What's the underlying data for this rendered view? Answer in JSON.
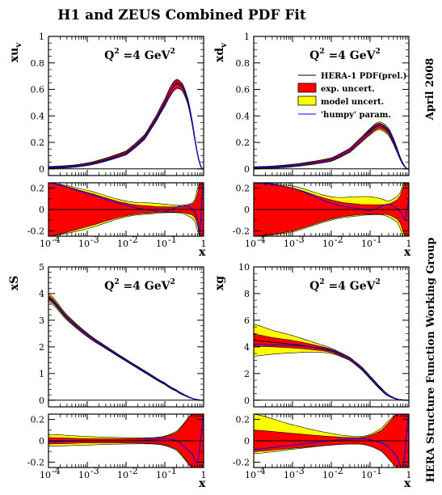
{
  "title": "H1 and ZEUS Combined PDF Fit",
  "side_top": "April 2008",
  "side_bottom": "HERA Structure Function Working Group",
  "legend": {
    "entries": [
      {
        "label": "HERA-1 PDF(prel.)",
        "kind": "line",
        "color": "#000000"
      },
      {
        "label": "exp. uncert.",
        "kind": "box",
        "color": "#ff0000"
      },
      {
        "label": "model uncert.",
        "kind": "box",
        "color": "#ffff00"
      },
      {
        "label": "'humpy' param.",
        "kind": "line",
        "color": "#0000ff"
      }
    ]
  },
  "colors": {
    "exp": "#ff0000",
    "model": "#ffff00",
    "central": "#000000",
    "humpy": "#0000ff"
  },
  "chart_data": [
    {
      "id": "xuv",
      "type": "line",
      "x_scale": "log",
      "xlim": [
        0.0001,
        1
      ],
      "ylabel": "xu",
      "ylabel_sub": "v",
      "q2_label": "Q",
      "q2_sup": "2",
      "q2_rest": " =4 GeV",
      "q2_sup2": "2",
      "ylim": [
        -0.05,
        1
      ],
      "yticks": [
        0,
        0.2,
        0.4,
        0.6,
        0.8,
        1
      ],
      "ytick_labels": [
        "0",
        "0.2",
        "0.4",
        "0.6",
        "0.8",
        "1"
      ],
      "series": {
        "x": [
          0.0001,
          0.001,
          0.01,
          0.03,
          0.06,
          0.1,
          0.15,
          0.2,
          0.25,
          0.3,
          0.4,
          0.5,
          0.6,
          0.7,
          0.8,
          0.9,
          1.0
        ],
        "central": [
          0.01,
          0.035,
          0.12,
          0.24,
          0.38,
          0.5,
          0.6,
          0.64,
          0.63,
          0.6,
          0.5,
          0.36,
          0.22,
          0.11,
          0.04,
          0.005,
          0
        ],
        "exp_band": [
          0.005,
          0.008,
          0.012,
          0.015,
          0.02,
          0.025,
          0.03,
          0.03,
          0.028,
          0.025,
          0.02,
          0.015,
          0.01,
          0.008,
          0.005,
          0.002,
          0
        ],
        "model_band": [
          0.008,
          0.01,
          0.015,
          0.018,
          0.022,
          0.028,
          0.035,
          0.035,
          0.03,
          0.028,
          0.022,
          0.018,
          0.012,
          0.01,
          0.006,
          0.003,
          0
        ],
        "humpy": [
          0.012,
          0.033,
          0.11,
          0.23,
          0.37,
          0.49,
          0.6,
          0.65,
          0.64,
          0.61,
          0.51,
          0.37,
          0.23,
          0.11,
          0.04,
          0.005,
          0
        ]
      },
      "ratio": {
        "ylim": [
          -0.25,
          0.25
        ],
        "yticks": [
          -0.2,
          0,
          0.2
        ],
        "ytick_labels": [
          "-0.2",
          "0",
          "0.2"
        ],
        "x": [
          0.0001,
          0.001,
          0.01,
          0.05,
          0.1,
          0.2,
          0.3,
          0.5,
          0.6,
          0.7,
          0.8,
          0.9,
          1.0
        ],
        "exp_upper": [
          0.25,
          0.16,
          0.06,
          0.03,
          0.025,
          0.025,
          0.03,
          0.05,
          0.08,
          0.15,
          0.25,
          0.25,
          0.25
        ],
        "exp_lower": [
          -0.25,
          -0.16,
          -0.06,
          -0.03,
          -0.025,
          -0.025,
          -0.03,
          -0.05,
          -0.08,
          -0.15,
          -0.25,
          -0.25,
          -0.25
        ],
        "model_upper": [
          0.25,
          0.18,
          0.08,
          0.06,
          0.05,
          0.04,
          0.04,
          0.06,
          0.1,
          0.2,
          0.25,
          0.25,
          0.25
        ],
        "model_lower": [
          -0.25,
          -0.18,
          -0.07,
          -0.04,
          -0.03,
          -0.03,
          -0.04,
          -0.08,
          -0.12,
          -0.2,
          -0.25,
          -0.25,
          -0.25
        ],
        "humpy": [
          0.25,
          0.15,
          0.04,
          -0.01,
          -0.02,
          0.02,
          0.04,
          0.01,
          -0.03,
          -0.1,
          -0.2,
          0.1,
          0.25
        ]
      }
    },
    {
      "id": "xdv",
      "type": "line",
      "x_scale": "log",
      "xlim": [
        0.0001,
        1
      ],
      "ylabel": "xd",
      "ylabel_sub": "v",
      "q2_label": "Q",
      "q2_sup": "2",
      "q2_rest": " =4 GeV",
      "q2_sup2": "2",
      "ylim": [
        -0.05,
        1
      ],
      "yticks": [
        0,
        0.2,
        0.4,
        0.6,
        0.8,
        1
      ],
      "ytick_labels": [
        "0",
        "0.2",
        "0.4",
        "0.6",
        "0.8",
        "1"
      ],
      "legend": true,
      "series": {
        "x": [
          0.0001,
          0.001,
          0.01,
          0.03,
          0.06,
          0.1,
          0.15,
          0.2,
          0.3,
          0.4,
          0.5,
          0.6,
          0.7,
          0.8,
          0.9,
          1.0
        ],
        "central": [
          0.008,
          0.025,
          0.07,
          0.14,
          0.22,
          0.28,
          0.32,
          0.32,
          0.28,
          0.21,
          0.14,
          0.08,
          0.04,
          0.015,
          0.003,
          0
        ],
        "exp_band": [
          0.005,
          0.007,
          0.01,
          0.013,
          0.016,
          0.018,
          0.02,
          0.02,
          0.018,
          0.015,
          0.012,
          0.008,
          0.005,
          0.003,
          0.001,
          0
        ],
        "model_band": [
          0.008,
          0.01,
          0.013,
          0.016,
          0.02,
          0.024,
          0.028,
          0.03,
          0.028,
          0.024,
          0.018,
          0.012,
          0.008,
          0.004,
          0.002,
          0
        ],
        "humpy": [
          0.01,
          0.026,
          0.07,
          0.14,
          0.22,
          0.29,
          0.33,
          0.33,
          0.29,
          0.22,
          0.14,
          0.08,
          0.04,
          0.015,
          0.003,
          0
        ]
      },
      "ratio": {
        "ylim": [
          -0.25,
          0.25
        ],
        "yticks": [
          -0.2,
          0,
          0.2
        ],
        "ytick_labels": [
          "-0.2",
          "0",
          "0.2"
        ],
        "x": [
          0.0001,
          0.001,
          0.01,
          0.05,
          0.1,
          0.2,
          0.3,
          0.5,
          0.6,
          0.7,
          0.8,
          0.9,
          1.0
        ],
        "exp_upper": [
          0.25,
          0.2,
          0.09,
          0.05,
          0.045,
          0.045,
          0.05,
          0.09,
          0.13,
          0.2,
          0.25,
          0.25,
          0.25
        ],
        "exp_lower": [
          -0.25,
          -0.2,
          -0.09,
          -0.05,
          -0.045,
          -0.045,
          -0.05,
          -0.09,
          -0.13,
          -0.2,
          -0.25,
          -0.25,
          -0.25
        ],
        "model_upper": [
          0.25,
          0.22,
          0.12,
          0.12,
          0.12,
          0.1,
          0.08,
          0.12,
          0.16,
          0.23,
          0.25,
          0.25,
          0.25
        ],
        "model_lower": [
          -0.25,
          -0.21,
          -0.1,
          -0.06,
          -0.05,
          -0.05,
          -0.07,
          -0.12,
          -0.18,
          -0.25,
          -0.25,
          -0.25,
          -0.25
        ],
        "humpy": [
          0.25,
          0.2,
          0.06,
          0.01,
          -0.01,
          0.03,
          0.05,
          0.01,
          -0.02,
          -0.06,
          -0.1,
          0.0,
          0.1
        ]
      }
    },
    {
      "id": "xS",
      "type": "line",
      "x_scale": "log",
      "xlim": [
        0.0001,
        1
      ],
      "ylabel": "xS",
      "ylabel_sub": "",
      "q2_label": "Q",
      "q2_sup": "2",
      "q2_rest": " =4 GeV",
      "q2_sup2": "2",
      "ylim": [
        -0.25,
        5
      ],
      "yticks": [
        0,
        1,
        2,
        3,
        4,
        5
      ],
      "ytick_labels": [
        "0",
        "1",
        "2",
        "3",
        "4",
        "5"
      ],
      "series": {
        "x": [
          0.0001,
          0.0003,
          0.001,
          0.003,
          0.01,
          0.03,
          0.1,
          0.2,
          0.3,
          0.5,
          0.7,
          1.0
        ],
        "central": [
          3.85,
          3.1,
          2.45,
          1.98,
          1.5,
          1.07,
          0.62,
          0.36,
          0.21,
          0.07,
          0.02,
          0
        ],
        "exp_band": [
          0.08,
          0.06,
          0.05,
          0.04,
          0.03,
          0.03,
          0.03,
          0.025,
          0.02,
          0.01,
          0.005,
          0
        ],
        "model_band": [
          0.15,
          0.1,
          0.07,
          0.05,
          0.04,
          0.04,
          0.035,
          0.03,
          0.025,
          0.012,
          0.006,
          0
        ],
        "humpy": [
          3.8,
          3.08,
          2.45,
          1.98,
          1.5,
          1.07,
          0.63,
          0.37,
          0.22,
          0.07,
          0.02,
          0
        ]
      },
      "ratio": {
        "ylim": [
          -0.25,
          0.25
        ],
        "yticks": [
          -0.2,
          0,
          0.2
        ],
        "ytick_labels": [
          "-0.2",
          "0",
          "0.2"
        ],
        "x": [
          0.0001,
          0.001,
          0.01,
          0.05,
          0.1,
          0.2,
          0.3,
          0.5,
          0.7,
          0.9,
          1.0
        ],
        "exp_upper": [
          0.03,
          0.02,
          0.02,
          0.025,
          0.04,
          0.08,
          0.15,
          0.25,
          0.25,
          0.25,
          0.25
        ],
        "exp_lower": [
          -0.03,
          -0.02,
          -0.02,
          -0.025,
          -0.04,
          -0.08,
          -0.15,
          -0.25,
          -0.25,
          -0.25,
          -0.25
        ],
        "model_upper": [
          0.06,
          0.04,
          0.03,
          0.03,
          0.045,
          0.09,
          0.16,
          0.25,
          0.25,
          0.25,
          0.25
        ],
        "model_lower": [
          -0.05,
          -0.04,
          -0.03,
          -0.03,
          -0.045,
          -0.09,
          -0.16,
          -0.25,
          -0.25,
          -0.25,
          -0.25
        ],
        "humpy": [
          -0.01,
          0.0,
          0.0,
          0.01,
          0.02,
          0.0,
          -0.05,
          -0.12,
          -0.2,
          0.1,
          0.25
        ]
      }
    },
    {
      "id": "xg",
      "type": "line",
      "x_scale": "log",
      "xlim": [
        0.0001,
        1
      ],
      "ylabel": "xg",
      "ylabel_sub": "",
      "q2_label": "Q",
      "q2_sup": "2",
      "q2_rest": " =4 GeV",
      "q2_sup2": "2",
      "ylim": [
        -0.5,
        10
      ],
      "yticks": [
        0,
        2,
        4,
        6,
        8,
        10
      ],
      "ytick_labels": [
        "0",
        "2",
        "4",
        "6",
        "8",
        "10"
      ],
      "series": {
        "x": [
          0.0001,
          0.0003,
          0.001,
          0.003,
          0.01,
          0.03,
          0.06,
          0.1,
          0.2,
          0.3,
          0.5,
          0.7,
          1.0
        ],
        "central": [
          4.5,
          4.35,
          4.2,
          4.0,
          3.7,
          3.1,
          2.4,
          1.7,
          0.8,
          0.35,
          0.08,
          0.02,
          0
        ],
        "exp_band": [
          0.45,
          0.35,
          0.28,
          0.2,
          0.12,
          0.1,
          0.1,
          0.1,
          0.08,
          0.05,
          0.02,
          0.01,
          0
        ],
        "model_band": [
          1.2,
          0.9,
          0.65,
          0.4,
          0.2,
          0.12,
          0.12,
          0.12,
          0.1,
          0.06,
          0.03,
          0.01,
          0
        ],
        "humpy": [
          4.2,
          4.15,
          4.1,
          4.0,
          3.75,
          3.1,
          2.4,
          1.7,
          0.8,
          0.35,
          0.08,
          0.02,
          0
        ]
      },
      "ratio": {
        "ylim": [
          -0.25,
          0.25
        ],
        "yticks": [
          -0.2,
          0,
          0.2
        ],
        "ytick_labels": [
          "-0.2",
          "0",
          "0.2"
        ],
        "x": [
          0.0001,
          0.001,
          0.01,
          0.05,
          0.1,
          0.2,
          0.3,
          0.5,
          0.7,
          0.9,
          1.0
        ],
        "exp_upper": [
          0.1,
          0.07,
          0.04,
          0.03,
          0.05,
          0.1,
          0.17,
          0.25,
          0.25,
          0.25,
          0.25
        ],
        "exp_lower": [
          -0.1,
          -0.07,
          -0.04,
          -0.03,
          -0.05,
          -0.1,
          -0.17,
          -0.25,
          -0.25,
          -0.25,
          -0.25
        ],
        "model_upper": [
          0.25,
          0.15,
          0.07,
          0.04,
          0.06,
          0.12,
          0.19,
          0.25,
          0.25,
          0.25,
          0.25
        ],
        "model_lower": [
          -0.12,
          -0.08,
          -0.04,
          -0.03,
          -0.05,
          -0.1,
          -0.17,
          -0.25,
          -0.25,
          -0.25,
          -0.25
        ],
        "humpy": [
          -0.08,
          -0.04,
          0.0,
          0.02,
          0.01,
          -0.02,
          -0.06,
          -0.15,
          -0.25,
          0.1,
          0.25
        ]
      }
    }
  ],
  "x_axis": {
    "label": "x",
    "ticks": [
      {
        "value": 0.0001,
        "base": "10",
        "exp": "-4"
      },
      {
        "value": 0.001,
        "base": "10",
        "exp": "-3"
      },
      {
        "value": 0.01,
        "base": "10",
        "exp": "-2"
      },
      {
        "value": 0.1,
        "base": "10",
        "exp": "-1"
      },
      {
        "value": 1,
        "base": "1",
        "exp": ""
      }
    ]
  }
}
